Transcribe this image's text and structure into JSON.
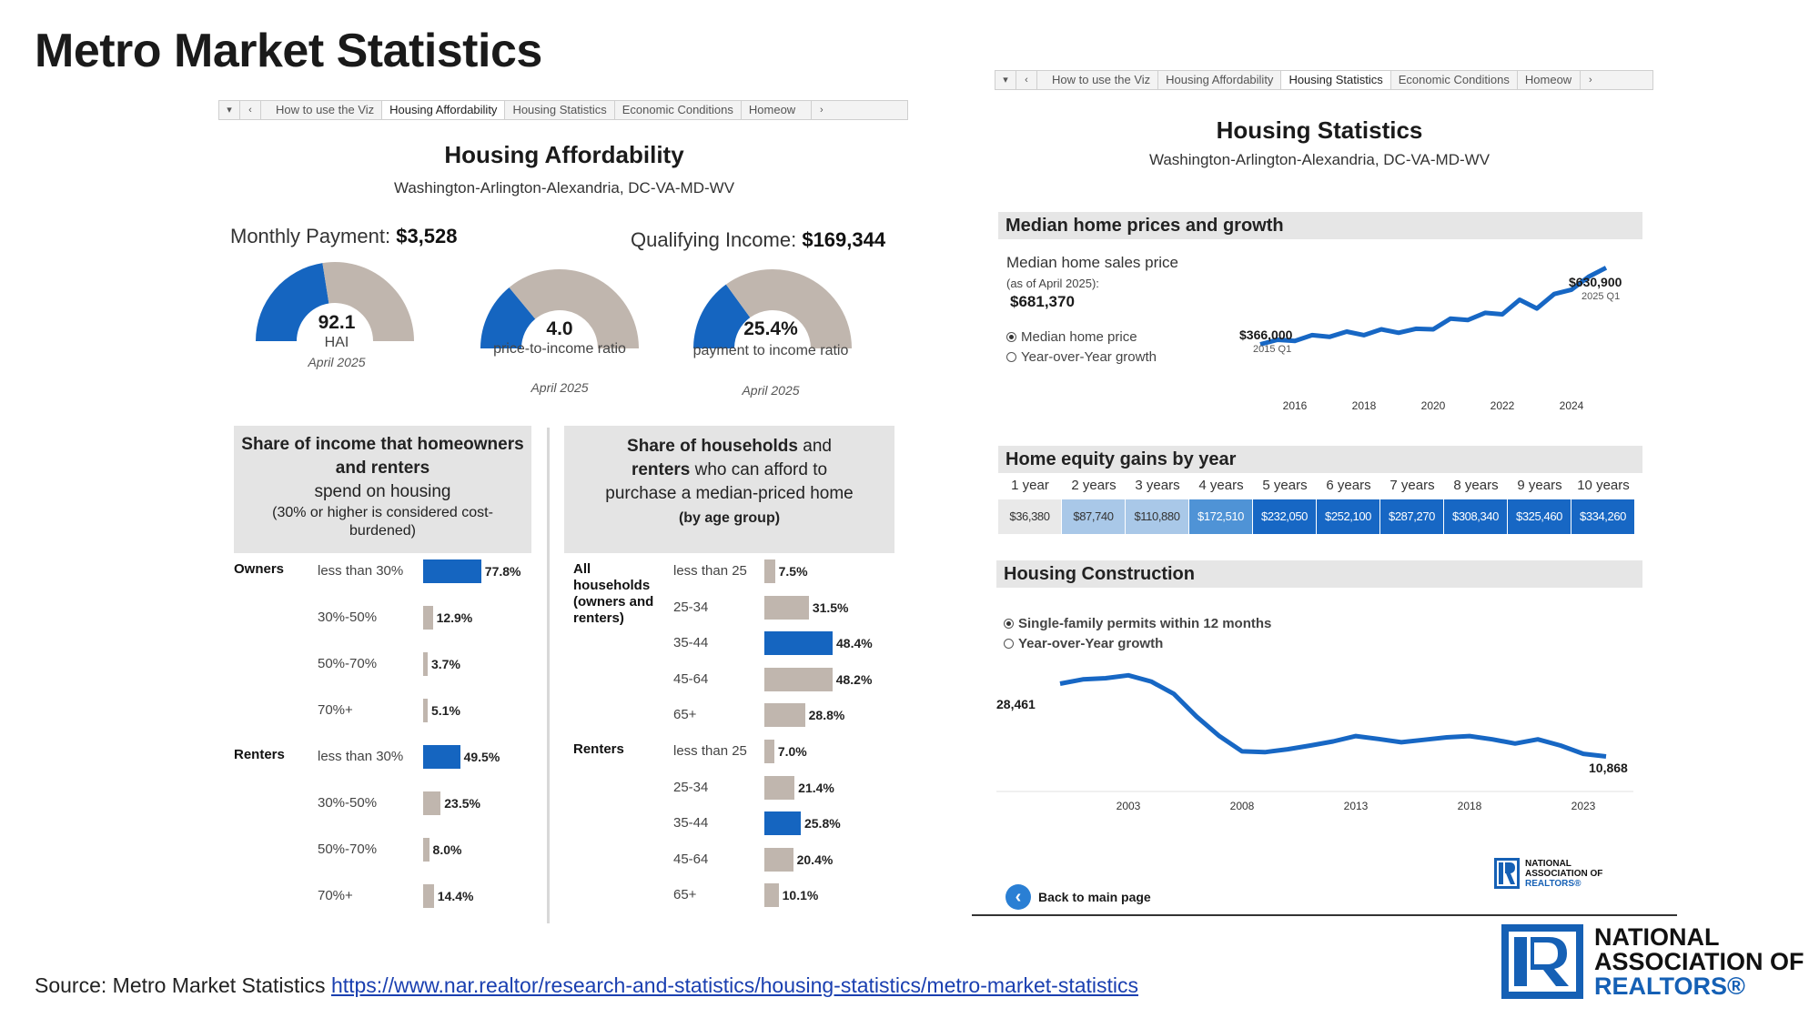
{
  "page": {
    "title": "Metro Market Statistics",
    "source_prefix": "Source: Metro Market Statistics",
    "source_url": "https://www.nar.realtor/research-and-statistics/housing-statistics/metro-market-statistics"
  },
  "left_tabs": {
    "ctrl_dropdown": "▾",
    "ctrl_prev": "‹",
    "tabs": [
      "How to use the Viz",
      "Housing Affordability",
      "Housing Statistics",
      "Economic Conditions",
      "Homeow"
    ],
    "ctrl_next": "›"
  },
  "right_tabs": {
    "ctrl_dropdown": "▾",
    "ctrl_prev": "‹",
    "tabs": [
      "How to use the Viz",
      "Housing Affordability",
      "Housing Statistics",
      "Economic Conditions",
      "Homeow"
    ],
    "ctrl_next": "›"
  },
  "affordability": {
    "title": "Housing Affordability",
    "area": "Washington-Arlington-Alexandria, DC-VA-MD-WV",
    "monthly_payment_label": "Monthly Payment:",
    "monthly_payment_value": "$3,528",
    "qualifying_income_label": "Qualifying Income:",
    "qualifying_income_value": "$169,344",
    "gauges": [
      {
        "value": "92.1",
        "label": "HAI",
        "date": "April 2025",
        "fill_fraction": 0.45
      },
      {
        "value": "4.0",
        "label": "price-to-income ratio",
        "date": "April 2025",
        "fill_fraction": 0.28
      },
      {
        "value": "25.4%",
        "label": "payment to income ratio",
        "date": "April 2025",
        "fill_fraction": 0.3
      }
    ],
    "colors": {
      "blue": "#1565c0",
      "grey": "#c0b6ae"
    }
  },
  "share_income": {
    "heading_bold": "Share of income that homeowners and renters",
    "heading_normal": "spend on housing",
    "note": "(30% or higher is considered cost-burdened)",
    "groups": [
      {
        "name": "Owners",
        "rows": [
          {
            "label": "less than 30%",
            "value": 77.8,
            "text": "77.8%",
            "highlight": true
          },
          {
            "label": "30%-50%",
            "value": 12.9,
            "text": "12.9%",
            "highlight": false
          },
          {
            "label": "50%-70%",
            "value": 3.7,
            "text": "3.7%",
            "highlight": false
          },
          {
            "label": "70%+",
            "value": 5.1,
            "text": "5.1%",
            "highlight": false
          }
        ]
      },
      {
        "name": "Renters",
        "rows": [
          {
            "label": "less than 30%",
            "value": 49.5,
            "text": "49.5%",
            "highlight": true
          },
          {
            "label": "30%-50%",
            "value": 23.5,
            "text": "23.5%",
            "highlight": false
          },
          {
            "label": "50%-70%",
            "value": 8.0,
            "text": "8.0%",
            "highlight": false
          },
          {
            "label": "70%+",
            "value": 14.4,
            "text": "14.4%",
            "highlight": false
          }
        ]
      }
    ]
  },
  "share_households": {
    "heading_line1_bold": "Share of households",
    "heading_line1_normal": "and",
    "heading_line2_bold": "renters",
    "heading_line2_normal": "who can afford to",
    "heading_line3": "purchase a median-priced home",
    "heading_line4": "(by age group)",
    "groups": [
      {
        "name": "All households (owners and renters)",
        "rows": [
          {
            "label": "less than 25",
            "value": 7.5,
            "text": "7.5%",
            "highlight": false
          },
          {
            "label": "25-34",
            "value": 31.5,
            "text": "31.5%",
            "highlight": false
          },
          {
            "label": "35-44",
            "value": 48.4,
            "text": "48.4%",
            "highlight": true
          },
          {
            "label": "45-64",
            "value": 48.2,
            "text": "48.2%",
            "highlight": false
          },
          {
            "label": "65+",
            "value": 28.8,
            "text": "28.8%",
            "highlight": false
          }
        ]
      },
      {
        "name": "Renters",
        "rows": [
          {
            "label": "less than 25",
            "value": 7.0,
            "text": "7.0%",
            "highlight": false
          },
          {
            "label": "25-34",
            "value": 21.4,
            "text": "21.4%",
            "highlight": false
          },
          {
            "label": "35-44",
            "value": 25.8,
            "text": "25.8%",
            "highlight": true
          },
          {
            "label": "45-64",
            "value": 20.4,
            "text": "20.4%",
            "highlight": false
          },
          {
            "label": "65+",
            "value": 10.1,
            "text": "10.1%",
            "highlight": false
          }
        ]
      }
    ]
  },
  "housing_stats": {
    "title": "Housing Statistics",
    "area": "Washington-Arlington-Alexandria, DC-VA-MD-WV",
    "median_section": "Median home prices and growth",
    "median_label": "Median home sales price",
    "median_asof": "(as of April 2025):",
    "median_value": "$681,370",
    "radio_price": "Median home price",
    "radio_growth": "Year-over-Year growth",
    "start_value": "$366,000",
    "start_period": "2015 Q1",
    "end_value": "$630,900",
    "end_period": "2025 Q1",
    "x_ticks": [
      "2016",
      "2018",
      "2020",
      "2022",
      "2024"
    ],
    "equity_section": "Home equity gains by year",
    "equity_labels": [
      "1 year",
      "2 years",
      "3 years",
      "4 years",
      "5 years",
      "6 years",
      "7 years",
      "8 years",
      "9 years",
      "10 years"
    ],
    "equity_values": [
      "$36,380",
      "$87,740",
      "$110,880",
      "$172,510",
      "$232,050",
      "$252,100",
      "$287,270",
      "$308,340",
      "$325,460",
      "$334,260"
    ],
    "equity_colors": [
      "#e9e9e9",
      "#a9c8e8",
      "#a9c8e8",
      "#4f93d6",
      "#1767c4",
      "#1767c4",
      "#1767c4",
      "#1767c4",
      "#1767c4",
      "#1767c4"
    ],
    "construction_section": "Housing Construction",
    "radio_permits": "Single-family permits within 12 months",
    "radio_permits_growth": "Year-over-Year growth",
    "permits_start": "28,461",
    "permits_end": "10,868",
    "permits_ticks": [
      "2003",
      "2008",
      "2013",
      "2018",
      "2023"
    ],
    "back_label": "Back to main page",
    "small_logo": [
      "NATIONAL",
      "ASSOCIATION OF",
      "REALTORS®"
    ]
  },
  "logo": {
    "line1": "NATIONAL",
    "line2": "ASSOCIATION OF",
    "line3": "REALTORS®",
    "color": "#1560b5"
  },
  "chart_data": [
    {
      "type": "line",
      "title": "Median home prices and growth",
      "series": [
        {
          "name": "Median home price",
          "x": [
            "2015 Q1",
            "2015 Q3",
            "2016 Q1",
            "2016 Q3",
            "2017 Q1",
            "2017 Q3",
            "2018 Q1",
            "2018 Q3",
            "2019 Q1",
            "2019 Q3",
            "2020 Q1",
            "2020 Q3",
            "2021 Q1",
            "2021 Q3",
            "2022 Q1",
            "2022 Q3",
            "2023 Q1",
            "2023 Q3",
            "2024 Q1",
            "2024 Q3",
            "2025 Q1"
          ],
          "values": [
            366000,
            382000,
            378000,
            398000,
            392000,
            410000,
            398000,
            418000,
            406000,
            420000,
            418000,
            455000,
            450000,
            475000,
            470000,
            520000,
            490000,
            540000,
            555000,
            600000,
            630900
          ]
        }
      ],
      "x_ticks": [
        "2016",
        "2018",
        "2020",
        "2022",
        "2024"
      ],
      "annotations": [
        "$366,000 2015 Q1",
        "$630,900 2025 Q1"
      ]
    },
    {
      "type": "table",
      "title": "Home equity gains by year",
      "categories": [
        "1 year",
        "2 years",
        "3 years",
        "4 years",
        "5 years",
        "6 years",
        "7 years",
        "8 years",
        "9 years",
        "10 years"
      ],
      "values": [
        36380,
        87740,
        110880,
        172510,
        232050,
        252100,
        287270,
        308340,
        325460,
        334260
      ]
    },
    {
      "type": "line",
      "title": "Housing Construction",
      "series": [
        {
          "name": "Single-family permits within 12 months",
          "x": [
            2000,
            2001,
            2002,
            2003,
            2004,
            2005,
            2006,
            2007,
            2008,
            2009,
            2010,
            2011,
            2012,
            2013,
            2014,
            2015,
            2016,
            2017,
            2018,
            2019,
            2020,
            2021,
            2022,
            2023,
            2024
          ],
          "values": [
            28461,
            29500,
            29800,
            30500,
            29000,
            26000,
            20500,
            15800,
            12100,
            11900,
            12600,
            13500,
            14500,
            15800,
            15100,
            14300,
            14900,
            15500,
            15800,
            15000,
            14000,
            15000,
            13500,
            11500,
            10868
          ]
        }
      ],
      "x_ticks": [
        "2003",
        "2008",
        "2013",
        "2018",
        "2023"
      ],
      "annotations": [
        "28,461",
        "10,868"
      ]
    },
    {
      "type": "bar",
      "title": "Share of income that homeowners and renters spend on housing",
      "categories": [
        "less than 30%",
        "30%-50%",
        "50%-70%",
        "70%+"
      ],
      "series": [
        {
          "name": "Owners",
          "values": [
            77.8,
            12.9,
            3.7,
            5.1
          ]
        },
        {
          "name": "Renters",
          "values": [
            49.5,
            23.5,
            8.0,
            14.4
          ]
        }
      ]
    },
    {
      "type": "bar",
      "title": "Share of households and renters who can afford to purchase a median-priced home (by age group)",
      "categories": [
        "less than 25",
        "25-34",
        "35-44",
        "45-64",
        "65+"
      ],
      "series": [
        {
          "name": "All households (owners and renters)",
          "values": [
            7.5,
            31.5,
            48.4,
            48.2,
            28.8
          ]
        },
        {
          "name": "Renters",
          "values": [
            7.0,
            21.4,
            25.8,
            20.4,
            10.1
          ]
        }
      ]
    }
  ]
}
